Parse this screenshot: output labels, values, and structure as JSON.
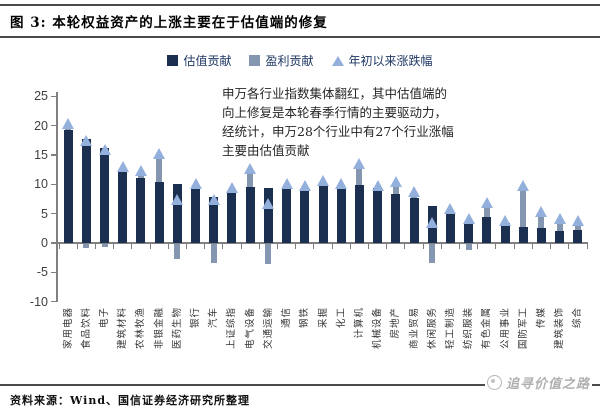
{
  "figure": {
    "title": "图 3: 本轮权益资产的上涨主要在于估值端的修复",
    "source_note": "资料来源：Wind、国信证券经济研究所整理",
    "watermark": "追寻价值之路",
    "annotation": "申万各行业指数集体翻红，其中估值端的\n向上修复是本轮春季行情的主要驱动力，\n经统计，申万28个行业中有27个行业涨幅\n主要由估值贡献"
  },
  "chart_data": {
    "type": "bar",
    "stacked": true,
    "grid": false,
    "legend_position": "top-center",
    "ylim": [
      -10,
      25
    ],
    "yticks": [
      25,
      20,
      15,
      10,
      5,
      0,
      -5,
      -10
    ],
    "colors": {
      "valuation": "#1B3051",
      "earnings": "#8496B0",
      "marker": "#93AFDC",
      "axis": "#808080"
    },
    "categories": [
      "家用电器",
      "食品饮料",
      "电子",
      "建筑材料",
      "农林牧渔",
      "非银金融",
      "医药生物",
      "银行",
      "汽车",
      "上证综指",
      "电气设备",
      "交通运输",
      "通信",
      "钢铁",
      "采掘",
      "化工",
      "计算机",
      "机械设备",
      "房地产",
      "商业贸易",
      "休闲服务",
      "轻工制造",
      "纺织服装",
      "有色金属",
      "公用事业",
      "国防军工",
      "传媒",
      "建筑装饰",
      "综合"
    ],
    "series": [
      {
        "name": "估值贡献",
        "type": "bar",
        "values": [
          19.2,
          17.8,
          16.2,
          12.4,
          11.0,
          10.4,
          10.0,
          9.6,
          7.9,
          8.9,
          9.5,
          9.3,
          9.3,
          9.0,
          10.1,
          9.6,
          9.9,
          9.3,
          8.3,
          7.6,
          6.3,
          5.2,
          3.6,
          4.5,
          3.4,
          2.8,
          2.6,
          2.0,
          2.2
        ]
      },
      {
        "name": "盈利贡献",
        "type": "bar",
        "values": [
          0.9,
          -0.8,
          -0.5,
          0.4,
          1.2,
          4.5,
          -2.6,
          0.4,
          -3.3,
          0.4,
          2.7,
          -3.4,
          0.7,
          0.8,
          0.3,
          0.3,
          3.4,
          0.3,
          1.9,
          0.9,
          -3.2,
          0.4,
          -1.0,
          2.2,
          0.2,
          6.6,
          2.2,
          1.7,
          1.2
        ]
      },
      {
        "name": "年初以来涨跌幅",
        "type": "scatter",
        "marker": "triangle-up",
        "values": [
          20.3,
          17.4,
          15.9,
          12.9,
          12.3,
          15.2,
          7.3,
          10.0,
          7.4,
          9.3,
          12.6,
          6.7,
          10.1,
          9.8,
          10.5,
          10.0,
          13.5,
          9.7,
          10.4,
          8.7,
          3.4,
          5.8,
          4.1,
          6.9,
          3.7,
          9.8,
          5.2,
          4.1,
          3.7
        ]
      }
    ]
  }
}
